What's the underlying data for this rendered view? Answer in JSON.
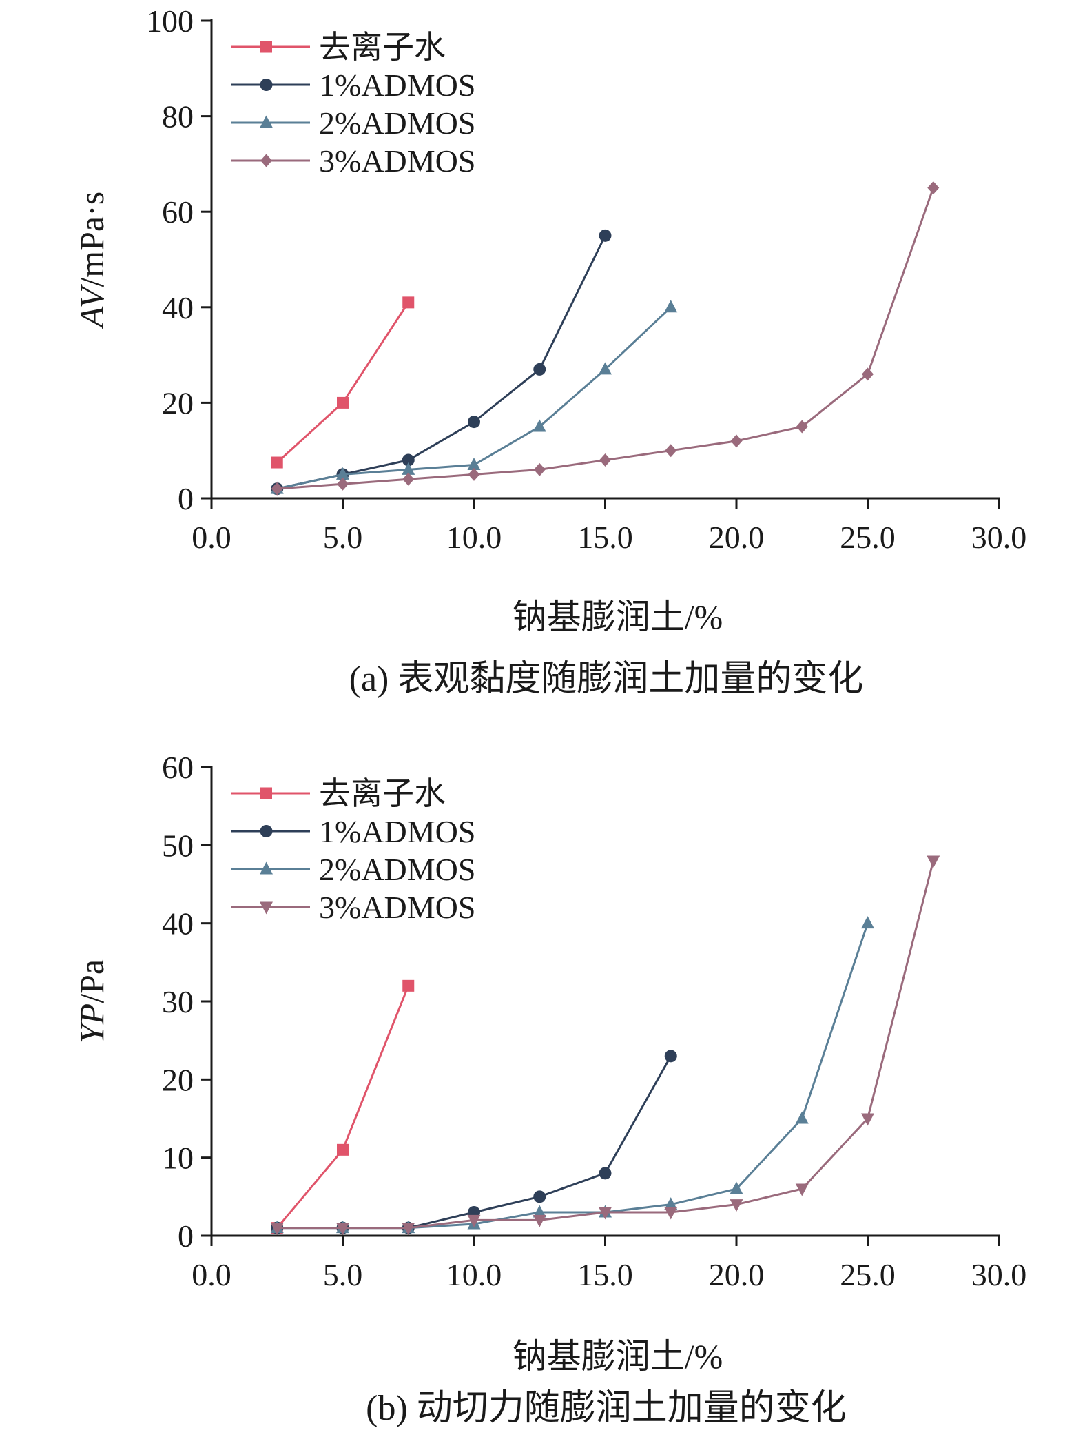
{
  "chart_data": [
    {
      "type": "line",
      "caption": "(a) 表观黏度随膨润土加量的变化",
      "xlabel": "钠基膨润土/%",
      "ylabel_var": "AV",
      "ylabel_unit": "/mPa·s",
      "xlim": [
        0,
        30
      ],
      "ylim": [
        0,
        100
      ],
      "xticks": [
        "0.0",
        "5.0",
        "10.0",
        "15.0",
        "20.0",
        "25.0",
        "30.0"
      ],
      "yticks": [
        "0",
        "20",
        "40",
        "60",
        "80",
        "100"
      ],
      "legend_position": "top-left",
      "grid": false,
      "series": [
        {
          "name": "去离子水",
          "color": "#e0546a",
          "marker": "square",
          "x": [
            2.5,
            5.0,
            7.5
          ],
          "y": [
            7.5,
            20,
            41
          ]
        },
        {
          "name": "1%ADMOS",
          "color": "#2e3f58",
          "marker": "circle",
          "x": [
            2.5,
            5.0,
            7.5,
            10.0,
            12.5,
            15.0
          ],
          "y": [
            2,
            5,
            8,
            16,
            27,
            55
          ]
        },
        {
          "name": "2%ADMOS",
          "color": "#5a7f96",
          "marker": "triangle",
          "x": [
            2.5,
            5.0,
            7.5,
            10.0,
            12.5,
            15.0,
            17.5
          ],
          "y": [
            2,
            5,
            6,
            7,
            15,
            27,
            40
          ]
        },
        {
          "name": "3%ADMOS",
          "color": "#9a6a7c",
          "marker": "diamond",
          "x": [
            2.5,
            5.0,
            7.5,
            10.0,
            12.5,
            15.0,
            17.5,
            20.0,
            22.5,
            25.0,
            27.5
          ],
          "y": [
            2,
            3,
            4,
            5,
            6,
            8,
            10,
            12,
            15,
            26,
            65
          ]
        }
      ]
    },
    {
      "type": "line",
      "caption": "(b) 动切力随膨润土加量的变化",
      "xlabel": "钠基膨润土/%",
      "ylabel_var": "YP",
      "ylabel_unit": "/Pa",
      "xlim": [
        0,
        30
      ],
      "ylim": [
        0,
        60
      ],
      "xticks": [
        "0.0",
        "5.0",
        "10.0",
        "15.0",
        "20.0",
        "25.0",
        "30.0"
      ],
      "yticks": [
        "0",
        "10",
        "20",
        "30",
        "40",
        "50",
        "60"
      ],
      "legend_position": "top-left",
      "grid": false,
      "series": [
        {
          "name": "去离子水",
          "color": "#e0546a",
          "marker": "square",
          "x": [
            2.5,
            5.0,
            7.5
          ],
          "y": [
            1,
            11,
            32
          ]
        },
        {
          "name": "1%ADMOS",
          "color": "#2e3f58",
          "marker": "circle",
          "x": [
            2.5,
            5.0,
            7.5,
            10.0,
            12.5,
            15.0,
            17.5
          ],
          "y": [
            1,
            1,
            1,
            3,
            5,
            8,
            23
          ]
        },
        {
          "name": "2%ADMOS",
          "color": "#5a7f96",
          "marker": "triangle",
          "x": [
            2.5,
            5.0,
            7.5,
            10.0,
            12.5,
            15.0,
            17.5,
            20.0,
            22.5,
            25.0
          ],
          "y": [
            1,
            1,
            1,
            1.5,
            3,
            3,
            4,
            6,
            15,
            40
          ]
        },
        {
          "name": "3%ADMOS",
          "color": "#9a6a7c",
          "marker": "triangle-down",
          "x": [
            2.5,
            5.0,
            7.5,
            10.0,
            12.5,
            15.0,
            17.5,
            20.0,
            22.5,
            25.0,
            27.5
          ],
          "y": [
            1,
            1,
            1,
            2,
            2,
            3,
            3,
            4,
            6,
            15,
            48
          ]
        }
      ]
    }
  ]
}
